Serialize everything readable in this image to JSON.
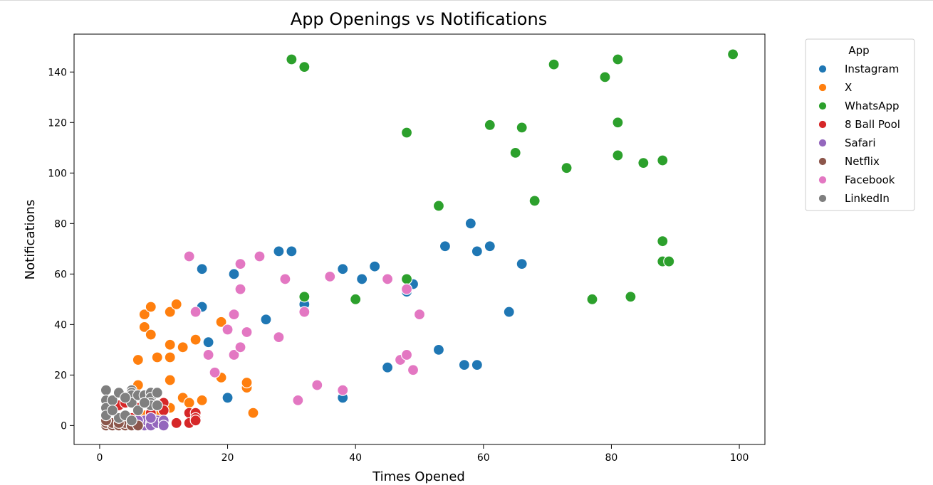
{
  "chart_data": {
    "type": "scatter",
    "title": "App Openings vs Notifications",
    "xlabel": "Times Opened",
    "ylabel": "Notifications",
    "xlim": [
      -4,
      104
    ],
    "ylim": [
      -7.5,
      155
    ],
    "xticks": [
      0,
      20,
      40,
      60,
      80,
      100
    ],
    "yticks": [
      0,
      20,
      40,
      60,
      80,
      100,
      120,
      140
    ],
    "grid": false,
    "legend": {
      "title": "App",
      "placement": "upper right, outside plot"
    },
    "series": [
      {
        "name": "Instagram",
        "color": "#1f77b4",
        "points": [
          [
            16,
            62
          ],
          [
            16,
            47
          ],
          [
            17,
            33
          ],
          [
            20,
            11
          ],
          [
            21,
            60
          ],
          [
            26,
            42
          ],
          [
            28,
            69
          ],
          [
            30,
            69
          ],
          [
            32,
            48
          ],
          [
            38,
            62
          ],
          [
            38,
            11
          ],
          [
            41,
            58
          ],
          [
            43,
            63
          ],
          [
            45,
            23
          ],
          [
            48,
            53
          ],
          [
            49,
            56
          ],
          [
            53,
            30
          ],
          [
            54,
            71
          ],
          [
            57,
            24
          ],
          [
            58,
            80
          ],
          [
            59,
            69
          ],
          [
            59,
            24
          ],
          [
            61,
            71
          ],
          [
            64,
            45
          ],
          [
            66,
            64
          ]
        ]
      },
      {
        "name": "X",
        "color": "#ff7f0e",
        "points": [
          [
            6,
            26
          ],
          [
            6,
            16
          ],
          [
            7,
            44
          ],
          [
            7,
            39
          ],
          [
            8,
            47
          ],
          [
            8,
            36
          ],
          [
            9,
            27
          ],
          [
            11,
            45
          ],
          [
            11,
            32
          ],
          [
            11,
            27
          ],
          [
            11,
            18
          ],
          [
            11,
            7
          ],
          [
            12,
            48
          ],
          [
            13,
            31
          ],
          [
            13,
            11
          ],
          [
            14,
            9
          ],
          [
            15,
            34
          ],
          [
            16,
            10
          ],
          [
            19,
            41
          ],
          [
            19,
            19
          ],
          [
            23,
            15
          ],
          [
            23,
            17
          ],
          [
            24,
            5
          ],
          [
            7,
            4
          ],
          [
            9,
            5
          ]
        ]
      },
      {
        "name": "WhatsApp",
        "color": "#2ca02c",
        "points": [
          [
            30,
            145
          ],
          [
            32,
            142
          ],
          [
            32,
            51
          ],
          [
            40,
            50
          ],
          [
            48,
            116
          ],
          [
            48,
            58
          ],
          [
            53,
            87
          ],
          [
            61,
            119
          ],
          [
            65,
            108
          ],
          [
            66,
            118
          ],
          [
            68,
            89
          ],
          [
            71,
            143
          ],
          [
            73,
            102
          ],
          [
            77,
            50
          ],
          [
            79,
            138
          ],
          [
            81,
            145
          ],
          [
            81,
            120
          ],
          [
            81,
            107
          ],
          [
            83,
            51
          ],
          [
            85,
            104
          ],
          [
            88,
            105
          ],
          [
            88,
            73
          ],
          [
            88,
            65
          ],
          [
            89,
            65
          ],
          [
            99,
            147
          ]
        ]
      },
      {
        "name": "8 Ball Pool",
        "color": "#d62728",
        "points": [
          [
            1,
            2
          ],
          [
            2,
            0
          ],
          [
            3,
            8
          ],
          [
            4,
            9
          ],
          [
            5,
            3
          ],
          [
            6,
            1
          ],
          [
            8,
            5
          ],
          [
            8,
            3
          ],
          [
            9,
            8
          ],
          [
            10,
            9
          ],
          [
            10,
            6
          ],
          [
            12,
            1
          ],
          [
            14,
            5
          ],
          [
            14,
            1
          ],
          [
            15,
            5
          ],
          [
            15,
            3
          ],
          [
            15,
            2
          ],
          [
            3,
            1
          ],
          [
            6,
            7
          ],
          [
            9,
            2
          ]
        ]
      },
      {
        "name": "Safari",
        "color": "#9467bd",
        "points": [
          [
            6,
            1
          ],
          [
            7,
            0
          ],
          [
            7,
            2
          ],
          [
            8,
            1
          ],
          [
            8,
            0
          ],
          [
            9,
            2
          ],
          [
            9,
            1
          ],
          [
            10,
            2
          ],
          [
            10,
            0
          ],
          [
            8,
            3
          ],
          [
            6,
            2
          ]
        ]
      },
      {
        "name": "Netflix",
        "color": "#8c564b",
        "points": [
          [
            1,
            0
          ],
          [
            1,
            1
          ],
          [
            2,
            0
          ],
          [
            2,
            1
          ],
          [
            3,
            0
          ],
          [
            4,
            0
          ],
          [
            4,
            1
          ],
          [
            5,
            0
          ],
          [
            5,
            2
          ],
          [
            6,
            0
          ],
          [
            1,
            2
          ],
          [
            3,
            1
          ]
        ]
      },
      {
        "name": "Facebook",
        "color": "#e377c2",
        "points": [
          [
            14,
            67
          ],
          [
            15,
            45
          ],
          [
            17,
            28
          ],
          [
            18,
            21
          ],
          [
            20,
            38
          ],
          [
            21,
            44
          ],
          [
            21,
            28
          ],
          [
            22,
            64
          ],
          [
            22,
            54
          ],
          [
            22,
            31
          ],
          [
            23,
            37
          ],
          [
            25,
            67
          ],
          [
            28,
            35
          ],
          [
            29,
            58
          ],
          [
            31,
            10
          ],
          [
            32,
            45
          ],
          [
            34,
            16
          ],
          [
            36,
            59
          ],
          [
            38,
            14
          ],
          [
            45,
            58
          ],
          [
            47,
            26
          ],
          [
            48,
            54
          ],
          [
            48,
            28
          ],
          [
            49,
            22
          ],
          [
            50,
            44
          ]
        ]
      },
      {
        "name": "LinkedIn",
        "color": "#7f7f7f",
        "points": [
          [
            1,
            14
          ],
          [
            1,
            10
          ],
          [
            1,
            7
          ],
          [
            1,
            4
          ],
          [
            2,
            10
          ],
          [
            3,
            13
          ],
          [
            3,
            3
          ],
          [
            4,
            4
          ],
          [
            5,
            14
          ],
          [
            5,
            13
          ],
          [
            5,
            12
          ],
          [
            5,
            9
          ],
          [
            5,
            2
          ],
          [
            6,
            12
          ],
          [
            6,
            6
          ],
          [
            7,
            12
          ],
          [
            8,
            13
          ],
          [
            8,
            11
          ],
          [
            8,
            9
          ],
          [
            8,
            8
          ],
          [
            9,
            13
          ],
          [
            9,
            8
          ],
          [
            2,
            6
          ],
          [
            4,
            11
          ],
          [
            7,
            9
          ]
        ]
      }
    ]
  }
}
